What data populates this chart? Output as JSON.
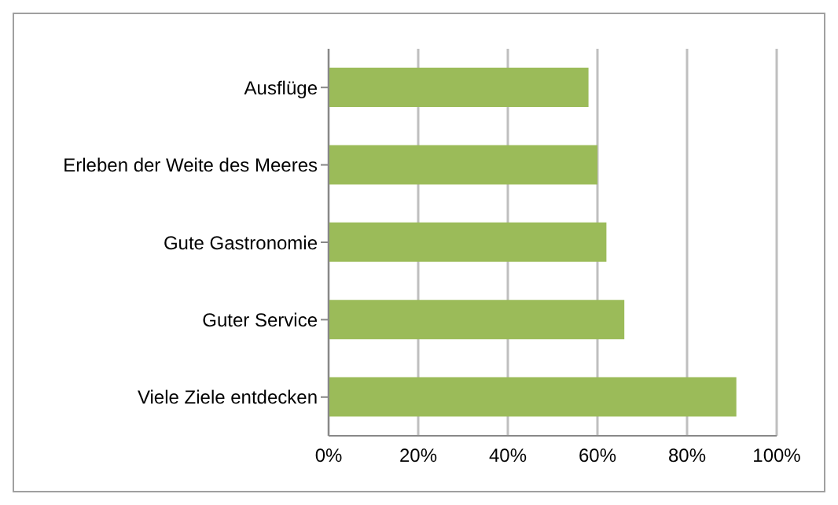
{
  "chart_data": {
    "type": "bar",
    "orientation": "horizontal",
    "categories": [
      "Ausflüge",
      "Erleben der Weite des Meeres",
      "Gute Gastronomie",
      "Guter Service",
      "Viele Ziele entdecken"
    ],
    "values": [
      0.58,
      0.6,
      0.62,
      0.66,
      0.91
    ],
    "color": "#9bbb59",
    "xlim": [
      0,
      1
    ],
    "xticks": [
      {
        "value": 0,
        "label": "0%"
      },
      {
        "value": 0.2,
        "label": "20%"
      },
      {
        "value": 0.4,
        "label": "40%"
      },
      {
        "value": 0.6,
        "label": "60%"
      },
      {
        "value": 0.8,
        "label": "80%"
      },
      {
        "value": 1,
        "label": "100%"
      }
    ],
    "grid": "x"
  }
}
